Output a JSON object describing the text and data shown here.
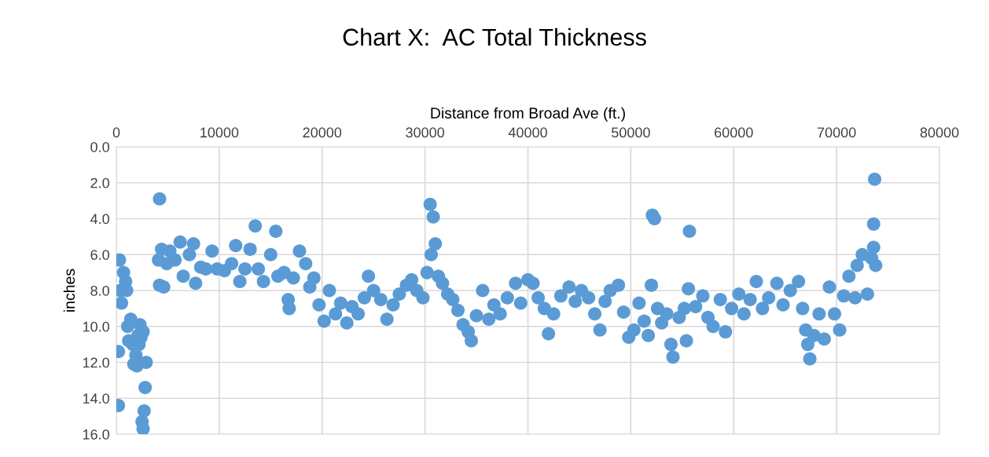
{
  "chart_data": {
    "type": "scatter",
    "title": "Chart X:  AC Total Thickness",
    "xlabel": "Distance from Broad Ave (ft.)",
    "ylabel": "inches",
    "xlim": [
      0,
      80000
    ],
    "xticks": [
      0,
      10000,
      20000,
      30000,
      40000,
      50000,
      60000,
      70000,
      80000
    ],
    "ylim": [
      16,
      0
    ],
    "yticks": [
      {
        "value": 0,
        "label": "0.0"
      },
      {
        "value": 2,
        "label": "2.0"
      },
      {
        "value": 4,
        "label": "4.0"
      },
      {
        "value": 6,
        "label": "6.0"
      },
      {
        "value": 8,
        "label": "8.0"
      },
      {
        "value": 10,
        "label": "10.0"
      },
      {
        "value": 12,
        "label": "12.0"
      },
      {
        "value": 14,
        "label": "14.0"
      },
      {
        "value": 16,
        "label": "16.0"
      }
    ],
    "grid": true,
    "marker": "circle",
    "series": [
      {
        "color": "#5b9bd5",
        "x": [
          200,
          200,
          300,
          400,
          500,
          700,
          900,
          1000,
          1100,
          1200,
          1400,
          1600,
          1700,
          1900,
          2000,
          2100,
          2200,
          2300,
          2400,
          2500,
          2600,
          2700,
          2800,
          2900,
          2600,
          4200,
          4100,
          4200,
          4400,
          4600,
          4900,
          5200,
          5700,
          6200,
          6500,
          7100,
          7500,
          7700,
          8200,
          8700,
          9300,
          9800,
          10500,
          11200,
          11600,
          12000,
          12500,
          13000,
          13500,
          13800,
          14300,
          15000,
          15500,
          15700,
          16300,
          16700,
          16800,
          17200,
          17800,
          18400,
          18800,
          19200,
          19700,
          20200,
          20700,
          21300,
          21800,
          22400,
          22900,
          23500,
          24100,
          24500,
          25000,
          25700,
          26300,
          26900,
          27500,
          28200,
          28700,
          29200,
          29800,
          30200,
          30500,
          30600,
          30800,
          31000,
          31300,
          31700,
          32200,
          32700,
          33200,
          33700,
          34200,
          34500,
          35000,
          35600,
          36200,
          36700,
          37300,
          38000,
          38800,
          39300,
          40000,
          40500,
          41000,
          41600,
          42000,
          42500,
          43200,
          44000,
          44600,
          45200,
          45900,
          46500,
          47000,
          47500,
          48000,
          48800,
          49300,
          49800,
          50300,
          50800,
          51300,
          51700,
          52000,
          52100,
          52300,
          52600,
          53000,
          53500,
          53900,
          54100,
          54700,
          55200,
          55400,
          55600,
          55700,
          56300,
          57000,
          57500,
          58000,
          58700,
          59200,
          59800,
          60500,
          61000,
          61600,
          62200,
          62800,
          63400,
          64200,
          64800,
          65500,
          66300,
          66700,
          67000,
          67200,
          67400,
          67800,
          68300,
          68800,
          69300,
          69800,
          70300,
          70700,
          71200,
          71800,
          72000,
          72500,
          73000,
          73400,
          73600,
          73600,
          73700,
          73800
        ],
        "values": [
          14.4,
          11.4,
          6.3,
          8.0,
          8.7,
          7.0,
          7.5,
          8.0,
          10.0,
          10.8,
          9.6,
          11.0,
          12.1,
          11.6,
          12.2,
          10.5,
          11.0,
          9.9,
          10.6,
          15.3,
          15.7,
          14.7,
          13.4,
          12.0,
          10.3,
          2.9,
          6.3,
          7.7,
          5.7,
          7.8,
          6.5,
          5.8,
          6.3,
          5.3,
          7.2,
          6.0,
          5.4,
          7.6,
          6.7,
          6.8,
          5.8,
          6.8,
          6.9,
          6.5,
          5.5,
          7.5,
          6.8,
          5.7,
          4.4,
          6.8,
          7.5,
          6.0,
          4.7,
          7.2,
          7.0,
          8.5,
          9.0,
          7.3,
          5.8,
          6.5,
          7.8,
          7.3,
          8.8,
          9.7,
          8.0,
          9.3,
          8.7,
          9.8,
          8.9,
          9.3,
          8.4,
          7.2,
          8.0,
          8.5,
          9.6,
          8.8,
          8.2,
          7.7,
          7.4,
          8.0,
          8.4,
          7.0,
          3.2,
          6.0,
          3.9,
          5.4,
          7.2,
          7.6,
          8.2,
          8.5,
          9.1,
          9.9,
          10.3,
          10.8,
          9.4,
          8.0,
          9.6,
          8.8,
          9.3,
          8.4,
          7.6,
          8.7,
          7.4,
          7.6,
          8.4,
          9.0,
          10.4,
          9.3,
          8.3,
          7.8,
          8.6,
          8.0,
          8.4,
          9.3,
          10.2,
          8.6,
          8.0,
          7.7,
          9.2,
          10.6,
          10.2,
          8.7,
          9.7,
          10.5,
          7.7,
          3.8,
          4.0,
          9.0,
          9.8,
          9.3,
          11.0,
          11.7,
          9.5,
          9.0,
          10.8,
          7.9,
          4.7,
          8.9,
          8.3,
          9.5,
          10.0,
          8.5,
          10.3,
          9.0,
          8.2,
          9.3,
          8.5,
          7.5,
          9.0,
          8.4,
          7.6,
          8.8,
          8.0,
          7.5,
          9.0,
          10.2,
          11.0,
          11.8,
          10.5,
          9.3,
          10.7,
          7.8,
          9.3,
          10.2,
          8.3,
          7.2,
          8.4,
          6.6,
          6.0,
          8.2,
          6.2,
          5.6,
          4.3,
          1.8,
          6.6
        ]
      }
    ]
  }
}
